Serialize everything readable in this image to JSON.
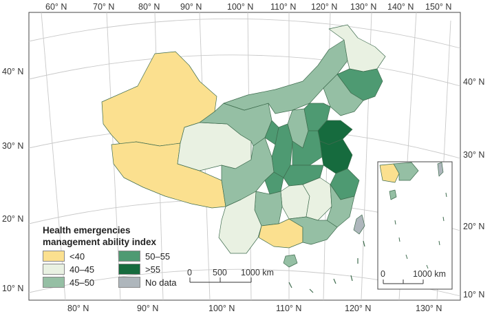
{
  "map": {
    "lon_labels_top": [
      "60° N",
      "70° N",
      "80° N",
      "90° N",
      "100° N",
      "110° N",
      "120° N",
      "130° N",
      "140° N",
      "150° N"
    ],
    "lon_labels_bottom": [
      "80° N",
      "90° N",
      "100° N",
      "110° N",
      "120° N",
      "130° N"
    ],
    "lat_labels_left": [
      "40° N",
      "30° N",
      "20° N",
      "10° N"
    ],
    "lat_labels_right": [
      "40° N",
      "30° N",
      "20° N",
      "10° N"
    ]
  },
  "legend": {
    "title_line1": "Health emergencies",
    "title_line2": "management ability index",
    "items": [
      {
        "label": "<40",
        "color": "#fbe08f"
      },
      {
        "label": "50–55",
        "color": "#4e9a72"
      },
      {
        "label": "40–45",
        "color": "#e9f1e2"
      },
      {
        "label": ">55",
        "color": "#166b3e"
      },
      {
        "label": "45–50",
        "color": "#95bfa4"
      },
      {
        "label": "No data",
        "color": "#aeb6bc"
      }
    ]
  },
  "scale_main": {
    "ticks": [
      "0",
      "500",
      "1000 km"
    ]
  },
  "scale_inset": {
    "ticks": [
      "0",
      "1000 km"
    ]
  }
}
